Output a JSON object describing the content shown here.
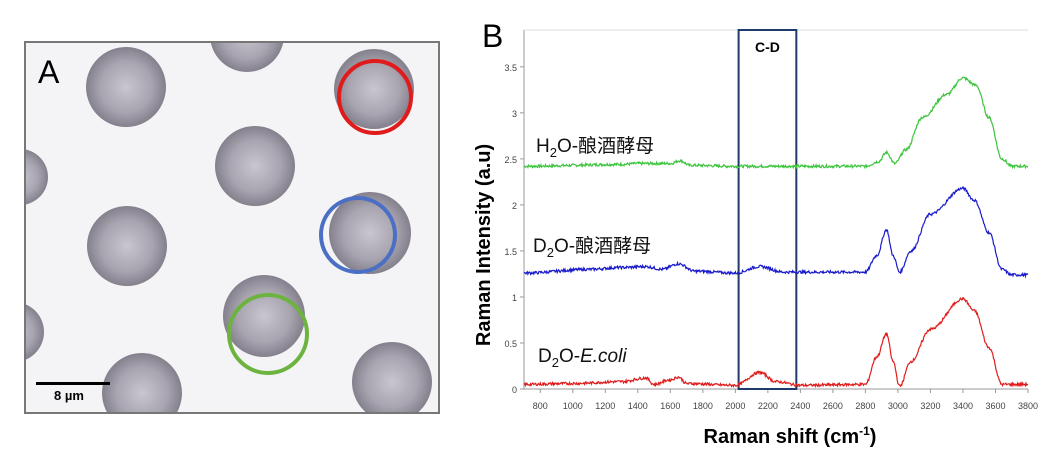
{
  "panel_a": {
    "label": "A",
    "scale_bar_label": "8 µm",
    "ring_colors": {
      "red": "#e01b1b",
      "blue": "#4a6fc4",
      "green": "#6cb33f"
    }
  },
  "panel_b": {
    "label": "B"
  },
  "chart_data": {
    "type": "line",
    "xlabel": "Raman shift  (cm",
    "xlabel_sup": "-1",
    "xlabel_end": ")",
    "ylabel": "Raman Intensity   (a.u)",
    "xlim": [
      700,
      3800
    ],
    "ylim": [
      0,
      3.9
    ],
    "x_ticks": [
      800,
      1000,
      1200,
      1400,
      1600,
      1800,
      2000,
      2200,
      2400,
      2600,
      2800,
      3000,
      3200,
      3400,
      3600,
      3800
    ],
    "y_ticks": [
      "0",
      "0.5",
      "1",
      "1.5",
      "2",
      "2.5",
      "3",
      "3.5"
    ],
    "grid": false,
    "highlight": {
      "label": "C-D",
      "x_range": [
        2020,
        2375
      ],
      "color": "#1f3a6b"
    },
    "series": [
      {
        "name": "H2O-酿酒酵母",
        "name_parts": [
          "H",
          "2",
          "O-酿酒酵母"
        ],
        "color": "#3cc43c",
        "points": [
          [
            700,
            2.42
          ],
          [
            1300,
            2.44
          ],
          [
            1400,
            2.45
          ],
          [
            1600,
            2.45
          ],
          [
            1660,
            2.48
          ],
          [
            1720,
            2.43
          ],
          [
            2000,
            2.42
          ],
          [
            2800,
            2.42
          ],
          [
            2880,
            2.47
          ],
          [
            2930,
            2.57
          ],
          [
            2980,
            2.45
          ],
          [
            3050,
            2.6
          ],
          [
            3150,
            2.95
          ],
          [
            3300,
            3.2
          ],
          [
            3400,
            3.38
          ],
          [
            3480,
            3.3
          ],
          [
            3560,
            2.95
          ],
          [
            3640,
            2.5
          ],
          [
            3700,
            2.42
          ],
          [
            3800,
            2.42
          ]
        ]
      },
      {
        "name": "D2O-酿酒酵母",
        "name_parts": [
          "D",
          "2",
          "O-酿酒酵母"
        ],
        "color": "#1a1acc",
        "points": [
          [
            700,
            1.26
          ],
          [
            1100,
            1.3
          ],
          [
            1300,
            1.32
          ],
          [
            1450,
            1.33
          ],
          [
            1550,
            1.3
          ],
          [
            1650,
            1.36
          ],
          [
            1750,
            1.28
          ],
          [
            2000,
            1.26
          ],
          [
            2150,
            1.33
          ],
          [
            2300,
            1.27
          ],
          [
            2800,
            1.27
          ],
          [
            2870,
            1.45
          ],
          [
            2930,
            1.73
          ],
          [
            2970,
            1.45
          ],
          [
            3010,
            1.27
          ],
          [
            3080,
            1.5
          ],
          [
            3200,
            1.9
          ],
          [
            3400,
            2.18
          ],
          [
            3470,
            2.05
          ],
          [
            3560,
            1.7
          ],
          [
            3640,
            1.3
          ],
          [
            3700,
            1.24
          ],
          [
            3800,
            1.24
          ]
        ]
      },
      {
        "name": "D2O-E.coli",
        "name_parts": [
          "D",
          "2",
          "O-",
          "E.coli"
        ],
        "color": "#e01b1b",
        "points": [
          [
            700,
            0.05
          ],
          [
            1000,
            0.06
          ],
          [
            1300,
            0.08
          ],
          [
            1450,
            0.12
          ],
          [
            1500,
            0.05
          ],
          [
            1600,
            0.1
          ],
          [
            1650,
            0.13
          ],
          [
            1700,
            0.06
          ],
          [
            2000,
            0.04
          ],
          [
            2150,
            0.18
          ],
          [
            2250,
            0.08
          ],
          [
            2400,
            0.04
          ],
          [
            2800,
            0.05
          ],
          [
            2870,
            0.35
          ],
          [
            2930,
            0.6
          ],
          [
            2970,
            0.3
          ],
          [
            3010,
            0.03
          ],
          [
            3080,
            0.3
          ],
          [
            3200,
            0.65
          ],
          [
            3400,
            0.98
          ],
          [
            3470,
            0.85
          ],
          [
            3560,
            0.45
          ],
          [
            3640,
            0.05
          ],
          [
            3800,
            0.05
          ]
        ]
      }
    ]
  }
}
